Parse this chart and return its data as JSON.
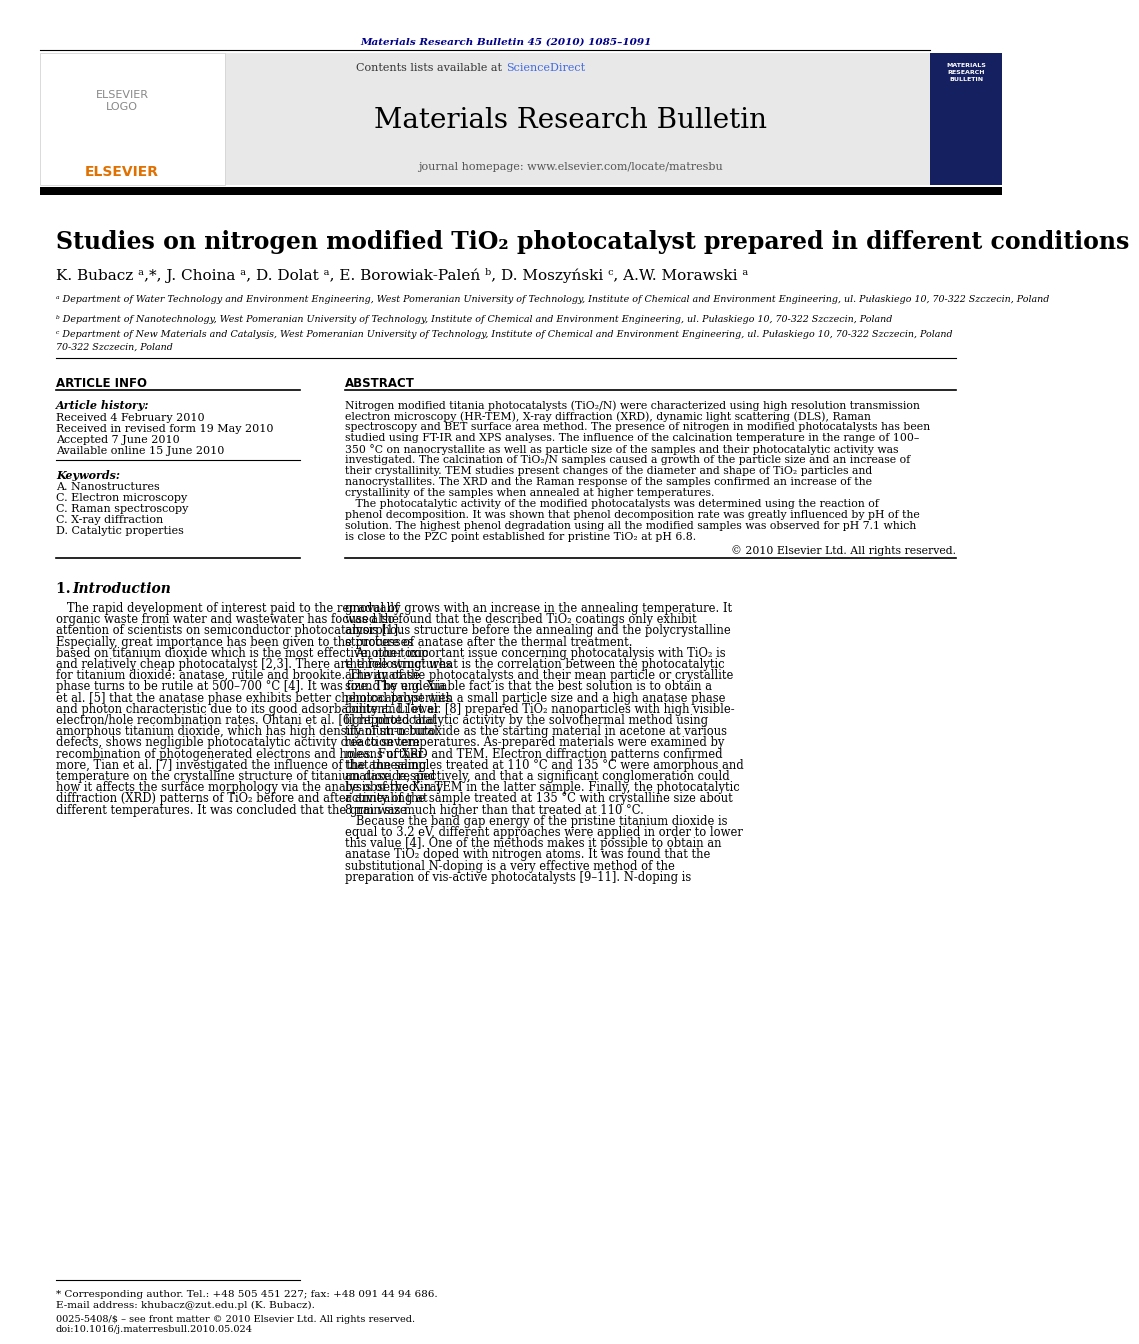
{
  "page_bg": "#ffffff",
  "header_citation": "Materials Research Bulletin 45 (2010) 1085–1091",
  "header_citation_color": "#00008B",
  "journal_name": "Materials Research Bulletin",
  "contents_text": "Contents lists available at ",
  "sciencedirect_text": "ScienceDirect",
  "sciencedirect_color": "#4169E1",
  "journal_homepage": "journal homepage: www.elsevier.com/locate/matresbu",
  "header_bg": "#e8e8e8",
  "authors": "K. Bubacz ᵃ,*, J. Choina ᵃ, D. Dolat ᵃ, E. Borowiak-Paleń ᵇ, D. Moszyński ᶜ, A.W. Morawski ᵃ",
  "affil_a": "ᵃ Department of Water Technology and Environment Engineering, West Pomeranian University of Technology, Institute of Chemical and Environment Engineering, ul. Pułaskiego 10, 70-322 Szczecin, Poland",
  "affil_b": "ᵇ Department of Nanotechnology, West Pomeranian University of Technology, Institute of Chemical and Environment Engineering, ul. Pułaskiego 10, 70-322 Szczecin, Poland",
  "affil_c": "ᶜ Department of New Materials and Catalysis, West Pomeranian University of Technology, Institute of Chemical and Environment Engineering, ul. Pułaskiego 10, 70-322 Szczecin, Poland",
  "article_info_header": "ARTICLE INFO",
  "abstract_header": "ABSTRACT",
  "article_history_label": "Article history:",
  "received": "Received 4 February 2010",
  "revised": "Received in revised form 19 May 2010",
  "accepted": "Accepted 7 June 2010",
  "available": "Available online 15 June 2010",
  "keywords_label": "Keywords:",
  "keyword1": "A. Nanostructures",
  "keyword2": "C. Electron microscopy",
  "keyword3": "C. Raman spectroscopy",
  "keyword4": "C. X-ray diffraction",
  "keyword5": "D. Catalytic properties",
  "copyright": "© 2010 Elsevier Ltd. All rights reserved.",
  "footnote1": "* Corresponding author. Tel.: +48 505 451 227; fax: +48 091 44 94 686.",
  "footnote2": "E-mail address: khubacz@zut.edu.pl (K. Bubacz).",
  "issn_line": "0025-5408/$ – see front matter © 2010 Elsevier Ltd. All rights reserved.",
  "doi_line": "doi:10.1016/j.materresbull.2010.05.024",
  "abstract_lines": [
    "Nitrogen modified titania photocatalysts (TiO₂/N) were characterized using high resolution transmission",
    "electron microscopy (HR-TEM), X-ray diffraction (XRD), dynamic light scattering (DLS), Raman",
    "spectroscopy and BET surface area method. The presence of nitrogen in modified photocatalysts has been",
    "studied using FT-IR and XPS analyses. The influence of the calcination temperature in the range of 100–",
    "350 °C on nanocrystallite as well as particle size of the samples and their photocatalytic activity was",
    "investigated. The calcination of TiO₂/N samples caused a growth of the particle size and an increase of",
    "their crystallinity. TEM studies present changes of the diameter and shape of TiO₂ particles and",
    "nanocrystallites. The XRD and the Raman response of the samples confirmed an increase of the",
    "crystallinity of the samples when annealed at higher temperatures.",
    "   The photocatalytic activity of the modified photocatalysts was determined using the reaction of",
    "phenol decomposition. It was shown that phenol decomposition rate was greatly influenced by pH of the",
    "solution. The highest phenol degradation using all the modified samples was observed for pH 7.1 which",
    "is close to the PZC point established for pristine TiO₂ at pH 6.8."
  ],
  "intro_left_lines": [
    "   The rapid development of interest paid to the removal of",
    "organic waste from water and wastewater has focused the",
    "attention of scientists on semiconductor photocatalysis [1].",
    "Especially, great importance has been given to the processes",
    "based on titanium dioxide which is the most effective, non-toxic",
    "and relatively cheap photocatalyst [2,3]. There are three structures",
    "for titanium dioxide: anatase, rutile and brookite. The anatase",
    "phase turns to be rutile at 500–700 °C [4]. It was found by e.g. Xia",
    "et al. [5] that the anatase phase exhibits better chemical properties",
    "and photon characteristic due to its good adsorbability and lower",
    "electron/hole recombination rates. Ohtani et al. [6] reported that",
    "amorphous titanium dioxide, which has high density of structural",
    "defects, shows negligible photocatalytic activity due to severe",
    "recombination of photogenerated electrons and holes. Further-",
    "more, Tian et al. [7] investigated the influence of the annealing",
    "temperature on the crystalline structure of titanium dioxide, and",
    "how it affects the surface morphology via the analysis of the X-ray",
    "diffraction (XRD) patterns of TiO₂ before and after annealing at",
    "different temperatures. It was concluded that the grain size"
  ],
  "intro_right_lines": [
    "gradually grows with an increase in the annealing temperature. It",
    "was also found that the described TiO₂ coatings only exhibit",
    "amorphous structure before the annealing and the polycrystalline",
    "structure of anatase after the thermal treatment.",
    "   Another important issue concerning photocatalysis with TiO₂ is",
    "the following: what is the correlation between the photocatalytic",
    "activity of the photocatalysts and their mean particle or crystallite",
    "size. The undeniable fact is that the best solution is to obtain a",
    "photocatalyst with a small particle size and a high anatase phase",
    "content. Li et al. [8] prepared TiO₂ nanoparticles with high visible-",
    "light photocatalytic activity by the solvothermal method using",
    "titanium-n-butoxide as the starting material in acetone at various",
    "reaction temperatures. As-prepared materials were examined by",
    "means of XRD and TEM. Electron diffraction patterns confirmed",
    "that the samples treated at 110 °C and 135 °C were amorphous and",
    "anatase, respectively, and that a significant conglomeration could",
    "be observed in TEM in the latter sample. Finally, the photocatalytic",
    "activity of the sample treated at 135 °C with crystalline size about",
    "8 nm was much higher than that treated at 110 °C.",
    "   Because the band gap energy of the pristine titanium dioxide is",
    "equal to 3.2 eV, different approaches were applied in order to lower",
    "this value [4]. One of the methods makes it possible to obtain an",
    "anatase TiO₂ doped with nitrogen atoms. It was found that the",
    "substitutional N-doping is a very effective method of the",
    "preparation of vis-active photocatalysts [9–11]. N-doping is"
  ]
}
